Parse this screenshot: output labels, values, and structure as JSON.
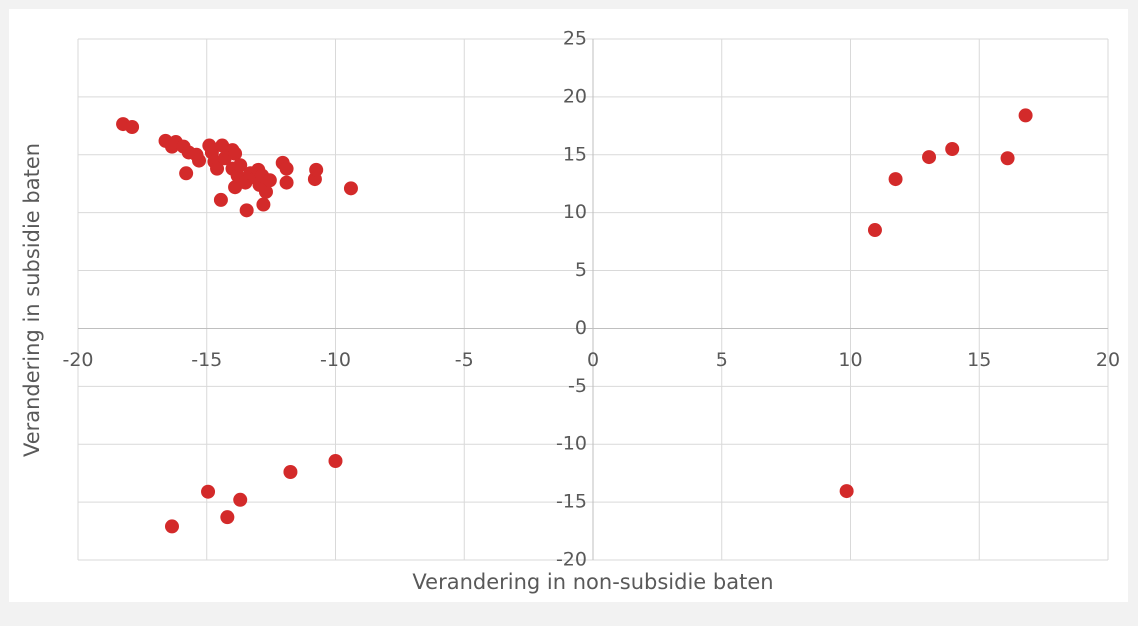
{
  "chart_data": {
    "type": "scatter",
    "x_label": "Verandering in non-subsidie baten",
    "y_label": "Verandering in subsidie baten",
    "color": "#d32a2a",
    "x": [
      -18.25,
      -17.9,
      -16.6,
      -16.35,
      -16.2,
      -15.9,
      -15.7,
      -15.8,
      -15.4,
      -15.3,
      -14.9,
      -14.8,
      -14.7,
      -14.6,
      -14.4,
      -14.3,
      -14.45,
      -14.0,
      -13.9,
      -14.0,
      -13.9,
      -13.8,
      -13.7,
      -13.5,
      -13.45,
      -13.3,
      -13.1,
      -13.0,
      -12.95,
      -12.85,
      -12.8,
      -12.7,
      -12.55,
      -12.05,
      -11.9,
      -11.9,
      -10.8,
      -10.75,
      -9.4,
      -16.35,
      -14.95,
      -14.2,
      -13.7,
      -11.75,
      -10.0,
      9.85,
      10.95,
      11.75,
      13.05,
      13.95,
      16.1,
      16.8
    ],
    "y": [
      17.65,
      17.4,
      16.2,
      15.7,
      16.1,
      15.7,
      15.2,
      13.4,
      15.0,
      14.5,
      15.8,
      15.2,
      14.4,
      13.8,
      15.8,
      14.7,
      11.1,
      15.4,
      15.1,
      13.8,
      12.2,
      13.2,
      14.1,
      12.6,
      10.2,
      13.4,
      13.0,
      13.7,
      12.4,
      13.2,
      10.7,
      11.8,
      12.8,
      14.3,
      13.8,
      12.6,
      12.9,
      13.7,
      12.1,
      -17.1,
      -14.1,
      -16.3,
      -14.8,
      -12.4,
      -11.45,
      -14.05,
      8.5,
      12.9,
      14.8,
      15.5,
      14.7,
      18.4
    ],
    "xlim": [
      -20,
      20
    ],
    "xticks": [
      -20,
      -15,
      -10,
      -5,
      0,
      5,
      10,
      15,
      20
    ],
    "ylim": [
      -20,
      25
    ],
    "yticks": [
      -20,
      -15,
      -10,
      -5,
      0,
      5,
      10,
      15,
      20,
      25
    ],
    "grid": true
  }
}
